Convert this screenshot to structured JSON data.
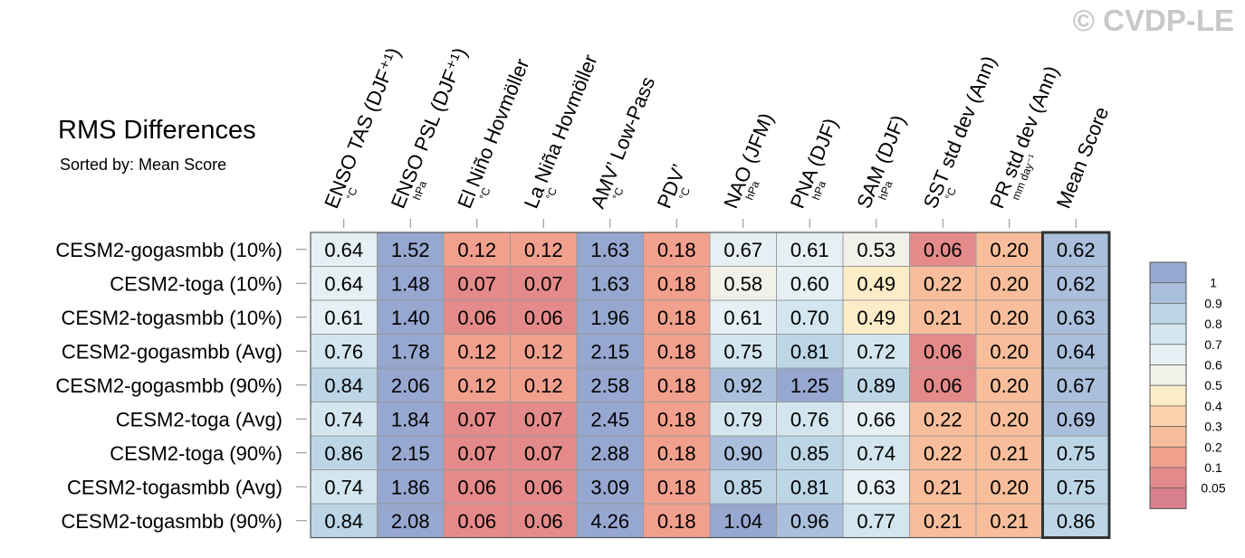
{
  "header": {
    "title": "RMS Differences",
    "subtitle": "Sorted by: Mean Score",
    "copyright": "© CVDP-LE"
  },
  "chart_data": {
    "type": "heatmap",
    "title": "RMS Differences",
    "subtitle": "Sorted by: Mean Score",
    "columns": [
      {
        "label": "ENSO TAS (DJF⁺¹)",
        "unit": "°C"
      },
      {
        "label": "ENSO PSL (DJF⁺¹)",
        "unit": "hPa"
      },
      {
        "label": "El Niño Hovmöller",
        "unit": "°C"
      },
      {
        "label": "La Niña Hovmöller",
        "unit": "°C"
      },
      {
        "label": "AMV’ Low-Pass",
        "unit": "°C"
      },
      {
        "label": "PDV’",
        "unit": "°C"
      },
      {
        "label": "NAO (JFM)",
        "unit": "hPa"
      },
      {
        "label": "PNA (DJF)",
        "unit": "hPa"
      },
      {
        "label": "SAM (DJF)",
        "unit": "hPa"
      },
      {
        "label": "SST std dev (Ann)",
        "unit": "°C"
      },
      {
        "label": "PR std dev (Ann)",
        "unit": "mm day⁻¹"
      },
      {
        "label": "Mean Score",
        "unit": ""
      }
    ],
    "rows": [
      {
        "label": "CESM2-gogasmbb (10%)",
        "values": [
          "0.64",
          "1.52",
          "0.12",
          "0.12",
          "1.63",
          "0.18",
          "0.67",
          "0.61",
          "0.53",
          "0.06",
          "0.20",
          "0.62"
        ]
      },
      {
        "label": "CESM2-toga (10%)",
        "values": [
          "0.64",
          "1.48",
          "0.07",
          "0.07",
          "1.63",
          "0.18",
          "0.58",
          "0.60",
          "0.49",
          "0.22",
          "0.20",
          "0.62"
        ]
      },
      {
        "label": "CESM2-togasmbb (10%)",
        "values": [
          "0.61",
          "1.40",
          "0.06",
          "0.06",
          "1.96",
          "0.18",
          "0.61",
          "0.70",
          "0.49",
          "0.21",
          "0.20",
          "0.63"
        ]
      },
      {
        "label": "CESM2-gogasmbb (Avg)",
        "values": [
          "0.76",
          "1.78",
          "0.12",
          "0.12",
          "2.15",
          "0.18",
          "0.75",
          "0.81",
          "0.72",
          "0.06",
          "0.20",
          "0.64"
        ]
      },
      {
        "label": "CESM2-gogasmbb (90%)",
        "values": [
          "0.84",
          "2.06",
          "0.12",
          "0.12",
          "2.58",
          "0.18",
          "0.92",
          "1.25",
          "0.89",
          "0.06",
          "0.20",
          "0.67"
        ]
      },
      {
        "label": "CESM2-toga (Avg)",
        "values": [
          "0.74",
          "1.84",
          "0.07",
          "0.07",
          "2.45",
          "0.18",
          "0.79",
          "0.76",
          "0.66",
          "0.22",
          "0.20",
          "0.69"
        ]
      },
      {
        "label": "CESM2-toga (90%)",
        "values": [
          "0.86",
          "2.15",
          "0.07",
          "0.07",
          "2.88",
          "0.18",
          "0.90",
          "0.85",
          "0.74",
          "0.22",
          "0.21",
          "0.75"
        ]
      },
      {
        "label": "CESM2-togasmbb (Avg)",
        "values": [
          "0.74",
          "1.86",
          "0.06",
          "0.06",
          "3.09",
          "0.18",
          "0.85",
          "0.81",
          "0.63",
          "0.21",
          "0.20",
          "0.75"
        ]
      },
      {
        "label": "CESM2-togasmbb (90%)",
        "values": [
          "0.84",
          "2.08",
          "0.06",
          "0.06",
          "4.26",
          "0.18",
          "1.04",
          "0.96",
          "0.77",
          "0.21",
          "0.21",
          "0.86"
        ]
      }
    ],
    "colorbar": {
      "labels": [
        "1",
        "0.9",
        "0.8",
        "0.7",
        "0.6",
        "0.5",
        "0.4",
        "0.3",
        "0.2",
        "0.1",
        "0.05"
      ],
      "colors": [
        "#96a7d0",
        "#a9bfdb",
        "#bcd6e6",
        "#d3e6ef",
        "#e5eff4",
        "#f2f1e9",
        "#fcedc8",
        "#fbd4ad",
        "#f8be9b",
        "#f2a08e",
        "#e58a8a",
        "#d87f8c"
      ]
    },
    "grid": true
  }
}
